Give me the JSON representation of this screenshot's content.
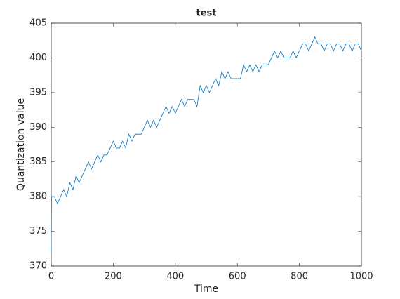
{
  "chart_data": {
    "type": "line",
    "title": "test",
    "x_label": "Time",
    "y_label": "Quantization value",
    "x": [
      0,
      1,
      10,
      20,
      30,
      40,
      50,
      60,
      70,
      80,
      90,
      100,
      110,
      120,
      130,
      140,
      150,
      160,
      170,
      180,
      190,
      200,
      210,
      220,
      230,
      240,
      250,
      260,
      270,
      280,
      290,
      300,
      310,
      320,
      330,
      340,
      350,
      360,
      370,
      380,
      390,
      400,
      410,
      420,
      430,
      440,
      450,
      460,
      470,
      480,
      490,
      500,
      510,
      520,
      530,
      540,
      550,
      560,
      570,
      580,
      590,
      600,
      610,
      620,
      630,
      640,
      650,
      660,
      670,
      680,
      690,
      700,
      710,
      720,
      730,
      740,
      750,
      760,
      770,
      780,
      790,
      800,
      810,
      820,
      830,
      840,
      850,
      860,
      870,
      880,
      890,
      900,
      910,
      920,
      930,
      940,
      950,
      960,
      970,
      980,
      990,
      1000
    ],
    "series": [
      {
        "name": "Quantization value",
        "color": "#0072bd",
        "values": [
          372,
          380,
          380,
          379,
          380,
          381,
          380,
          382,
          381,
          383,
          382,
          383,
          384,
          385,
          384,
          385,
          386,
          385,
          386,
          386,
          387,
          388,
          387,
          387,
          388,
          387,
          389,
          388,
          389,
          389,
          389,
          390,
          391,
          390,
          391,
          390,
          391,
          392,
          393,
          392,
          393,
          392,
          393,
          394,
          393,
          394,
          394,
          394,
          393,
          396,
          395,
          396,
          395,
          396,
          397,
          396,
          398,
          397,
          398,
          397,
          397,
          397,
          397,
          399,
          398,
          399,
          398,
          399,
          398,
          399,
          399,
          399,
          400,
          401,
          400,
          401,
          400,
          400,
          400,
          401,
          400,
          401,
          402,
          402,
          401,
          402,
          403,
          402,
          402,
          401,
          402,
          402,
          401,
          402,
          402,
          401,
          402,
          402,
          401,
          402,
          402,
          401
        ]
      }
    ],
    "xlim": [
      0,
      1000
    ],
    "ylim": [
      370,
      405
    ],
    "xticks": [
      0,
      200,
      400,
      600,
      800,
      1000
    ],
    "yticks": [
      370,
      375,
      380,
      385,
      390,
      395,
      400,
      405
    ]
  }
}
